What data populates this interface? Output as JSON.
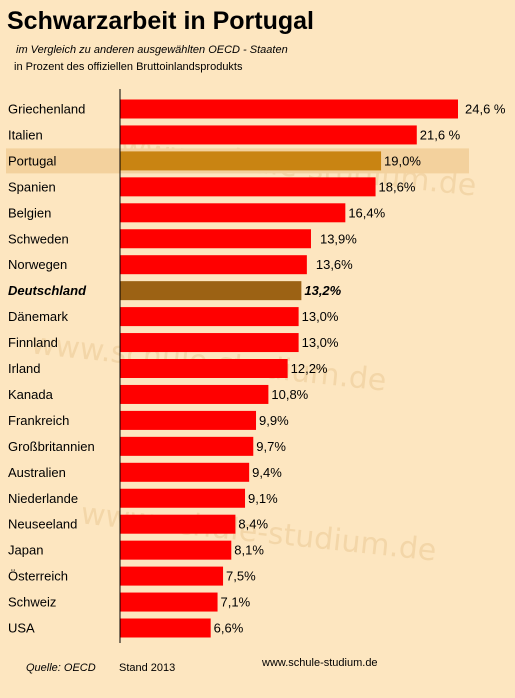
{
  "title": "Schwarzarbeit in Portugal",
  "subtitle": "im Vergleich zu anderen ausgewählten OECD - Staaten",
  "subtitle2": "in Prozent des offiziellen Bruttoinlandsprodukts",
  "footer": {
    "source": "Quelle: OECD",
    "date": "Stand 2013",
    "url": "www.schule-studium.de"
  },
  "watermark": "www.schule-studium.de",
  "colors": {
    "bar": "#ff0000",
    "highlight_portugal": "#c98412",
    "highlight_deutschland": "#9c6214",
    "portugal_band": "#f3d19d",
    "background": "#fde6c0"
  },
  "chart_data": {
    "type": "bar",
    "orientation": "horizontal",
    "title": "Schwarzarbeit in Portugal",
    "xlim": [
      0,
      24.6
    ],
    "grid": false,
    "categories": [
      "Griechenland",
      "Italien",
      "Portugal",
      "Spanien",
      "Belgien",
      "Schweden",
      "Norwegen",
      "Deutschland",
      "Dänemark",
      "Finnland",
      "Irland",
      "Kanada",
      "Frankreich",
      "Großbritannien",
      "Australien",
      "Niederlande",
      "Neuseeland",
      "Japan",
      "Österreich",
      "Schweiz",
      "USA"
    ],
    "values": [
      24.6,
      21.6,
      19.0,
      18.6,
      16.4,
      13.9,
      13.6,
      13.2,
      13.0,
      13.0,
      12.2,
      10.8,
      9.9,
      9.7,
      9.4,
      9.1,
      8.4,
      8.1,
      7.5,
      7.1,
      6.6
    ],
    "value_labels": [
      "24,6 %",
      "21,6 %",
      "19,0%",
      "18,6%",
      "16,4%",
      "13,9%",
      "13,6%",
      "13,2%",
      "13,0%",
      "13,0%",
      "12,2%",
      "10,8%",
      "9,9%",
      "9,7%",
      "9,4%",
      "9,1%",
      "8,4%",
      "8,1%",
      "7,5%",
      "7,1%",
      "6,6%"
    ],
    "highlight": [
      "Portugal",
      "Deutschland"
    ]
  }
}
